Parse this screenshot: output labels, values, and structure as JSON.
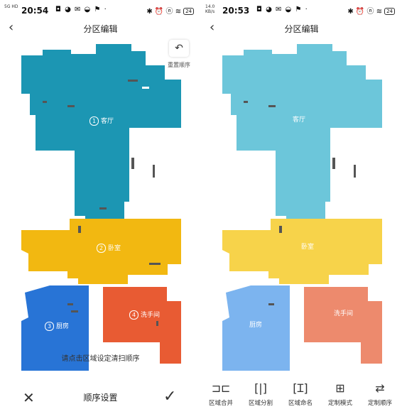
{
  "left": {
    "status": {
      "time": "20:54",
      "signal": "5G HD",
      "apps": "◘ ◕ ✉ ◒ ⚑ ·",
      "right_icons": "✱ ⏰ ⓝ ≋",
      "battery": "24"
    },
    "title": "分区编辑",
    "undo_label": "重置顺序",
    "rooms": [
      {
        "num": "1",
        "name": "客厅"
      },
      {
        "num": "2",
        "name": "卧室"
      },
      {
        "num": "3",
        "name": "厨房"
      },
      {
        "num": "4",
        "name": "洗手间"
      }
    ],
    "hint": "请点击区域设定清扫顺序",
    "bottom": {
      "close": "✕",
      "label": "顺序设置",
      "confirm": "✓"
    },
    "colors": {
      "living": "#1c96b3",
      "bedroom": "#f2b811",
      "kitchen": "#2874d6",
      "bathroom": "#e85b33"
    }
  },
  "right": {
    "status": {
      "time": "20:53",
      "signal": "14.0 KB/s",
      "apps": "◘ ◕ ✉ ◒ ⚑ ·",
      "right_icons": "✱ ⏰ ⓝ ≋",
      "battery": "24"
    },
    "title": "分区编辑",
    "rooms": [
      {
        "name": "客厅"
      },
      {
        "name": "卧室"
      },
      {
        "name": "厨房"
      },
      {
        "name": "洗手间"
      }
    ],
    "tools": [
      {
        "icon": "merge-icon",
        "glyph": "⊐⊏",
        "label": "区域合并"
      },
      {
        "icon": "split-icon",
        "glyph": "[|]",
        "label": "区域分割"
      },
      {
        "icon": "rename-icon",
        "glyph": "[Ɪ]",
        "label": "区域命名"
      },
      {
        "icon": "custom-mode-icon",
        "glyph": "⊞",
        "label": "定制模式"
      },
      {
        "icon": "custom-order-icon",
        "glyph": "⇄",
        "label": "定制顺序"
      }
    ],
    "colors": {
      "living": "#6cc6da",
      "bedroom": "#f7d34a",
      "kitchen": "#7cb4ef",
      "bathroom": "#ed8a6d"
    }
  }
}
